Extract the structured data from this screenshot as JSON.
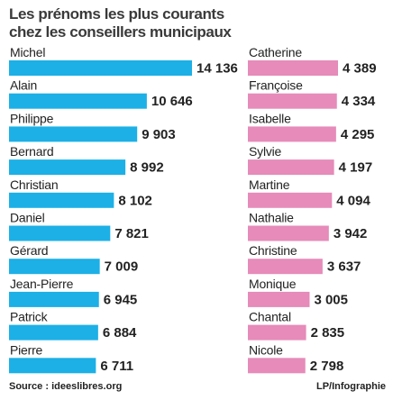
{
  "title": "Les prénoms les plus courants",
  "subtitle": "chez les conseillers municipaux",
  "source": "Source : ideeslibres.org",
  "credit": "LP/Infographie",
  "chart_data": [
    {
      "type": "bar",
      "orientation": "horizontal",
      "color": "#1cb0e6",
      "categories": [
        "Michel",
        "Alain",
        "Philippe",
        "Bernard",
        "Christian",
        "Daniel",
        "Gérard",
        "Jean-Pierre",
        "Patrick",
        "Pierre"
      ],
      "values": [
        14136,
        10646,
        9903,
        8992,
        8102,
        7821,
        7009,
        6945,
        6884,
        6711
      ],
      "value_labels": [
        "14 136",
        "10 646",
        "9 903",
        "8 992",
        "8 102",
        "7 821",
        "7 009",
        "6 945",
        "6 884",
        "6 711"
      ]
    },
    {
      "type": "bar",
      "orientation": "horizontal",
      "color": "#e68bba",
      "categories": [
        "Catherine",
        "Françoise",
        "Isabelle",
        "Sylvie",
        "Martine",
        "Nathalie",
        "Christine",
        "Monique",
        "Chantal",
        "Nicole"
      ],
      "values": [
        4389,
        4334,
        4295,
        4197,
        4094,
        3942,
        3637,
        3005,
        2835,
        2798
      ],
      "value_labels": [
        "4 389",
        "4 334",
        "4 295",
        "4 197",
        "4 094",
        "3 942",
        "3 637",
        "3 005",
        "2 835",
        "2 798"
      ]
    }
  ]
}
